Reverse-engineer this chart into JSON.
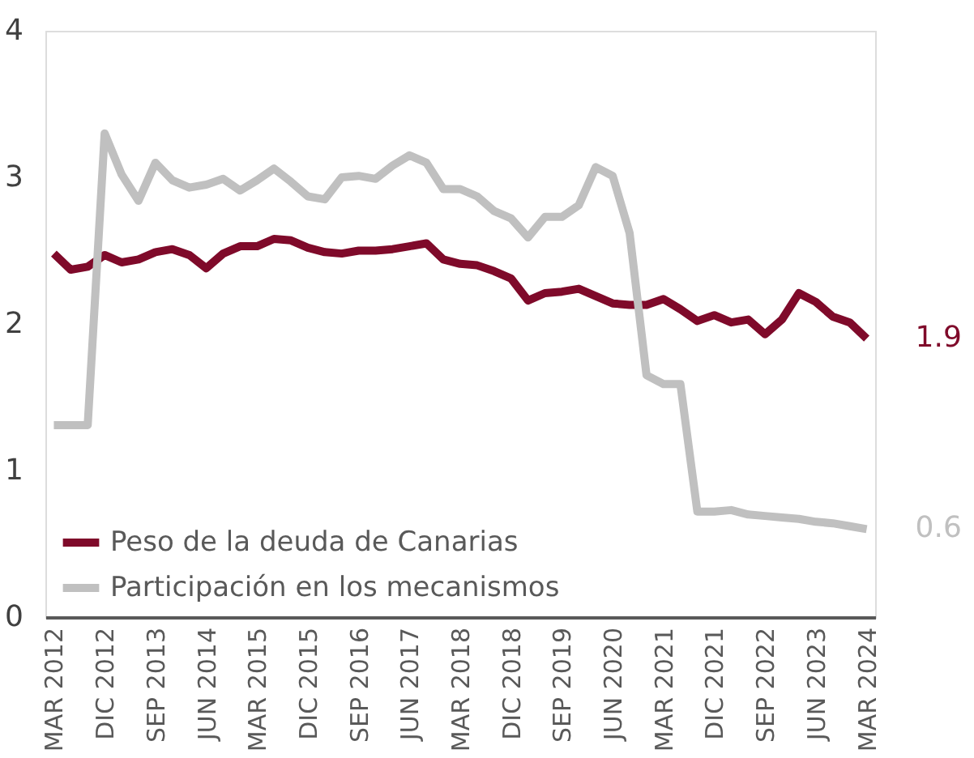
{
  "chart_data": {
    "type": "line",
    "categories": [
      "MAR 2012",
      null,
      null,
      "DIC 2012",
      null,
      null,
      "SEP 2013",
      null,
      null,
      "JUN 2014",
      null,
      null,
      "MAR 2015",
      null,
      null,
      "DIC 2015",
      null,
      null,
      "SEP 2016",
      null,
      null,
      "JUN 2017",
      null,
      null,
      "MAR 2018",
      null,
      null,
      "DIC 2018",
      null,
      null,
      "SEP 2019",
      null,
      null,
      "JUN 2020",
      null,
      null,
      "MAR 2021",
      null,
      null,
      "DIC 2021",
      null,
      null,
      "SEP 2022",
      null,
      null,
      "JUN 2023",
      null,
      null,
      "MAR 2024"
    ],
    "series": [
      {
        "name": "Peso de la deuda de Canarias",
        "color": "#7f0a2a",
        "values": [
          2.48,
          2.37,
          2.39,
          2.47,
          2.42,
          2.44,
          2.49,
          2.51,
          2.47,
          2.38,
          2.48,
          2.53,
          2.53,
          2.58,
          2.57,
          2.52,
          2.49,
          2.48,
          2.5,
          2.5,
          2.51,
          2.53,
          2.55,
          2.44,
          2.41,
          2.4,
          2.36,
          2.31,
          2.16,
          2.21,
          2.22,
          2.24,
          2.19,
          2.14,
          2.13,
          2.13,
          2.17,
          2.1,
          2.02,
          2.06,
          2.01,
          2.03,
          1.93,
          2.03,
          2.21,
          2.15,
          2.05,
          2.01,
          1.9
        ]
      },
      {
        "name": "Participación en los mecanismos",
        "color": "#c0c0c0",
        "values": [
          1.31,
          1.31,
          1.31,
          3.3,
          3.02,
          2.84,
          3.1,
          2.98,
          2.93,
          2.95,
          2.99,
          2.91,
          2.98,
          3.06,
          2.97,
          2.87,
          2.85,
          3.0,
          3.01,
          2.99,
          3.08,
          3.15,
          3.1,
          2.92,
          2.92,
          2.87,
          2.77,
          2.72,
          2.59,
          2.73,
          2.73,
          2.81,
          3.07,
          3.01,
          2.62,
          1.65,
          1.59,
          1.59,
          0.72,
          0.72,
          0.73,
          0.7,
          0.69,
          0.68,
          0.67,
          0.65,
          0.64,
          0.62,
          0.6
        ]
      }
    ],
    "ylim": [
      0,
      4
    ],
    "yticks": [
      0,
      1,
      2,
      3,
      4
    ],
    "grid": false,
    "legend": "bottom left",
    "marker": "none",
    "line_style": "solid",
    "annotations": [
      {
        "text": "1.9",
        "x": "MAR 2024",
        "y": 1.9
      },
      {
        "text": "0.6",
        "x": "MAR 2024",
        "y": 0.6
      }
    ]
  }
}
